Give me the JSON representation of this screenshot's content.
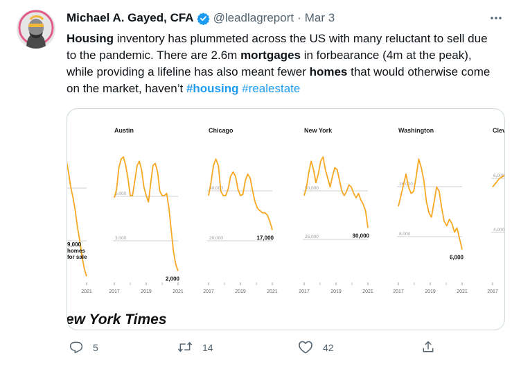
{
  "tweet": {
    "author_name": "Michael A. Gayed, CFA",
    "handle": "@leadlagreport",
    "separator": "·",
    "date": "Mar 3",
    "text_parts": [
      {
        "t": "Housing",
        "s": "bold"
      },
      {
        "t": " inventory has plummeted across the US with many reluctant to sell due to the pandemic. There are 2.6m ",
        "s": "plain"
      },
      {
        "t": "mortgages",
        "s": "bold"
      },
      {
        "t": " in forbearance (4m at the peak), while providing a lifeline has also meant fewer ",
        "s": "plain"
      },
      {
        "t": "homes",
        "s": "bold"
      },
      {
        "t": " that would otherwise come on the market, haven’t ",
        "s": "plain"
      },
      {
        "t": "#housing",
        "s": "hashtag-bold"
      },
      {
        "t": " ",
        "s": "plain"
      },
      {
        "t": "#realestate",
        "s": "hashtag"
      }
    ]
  },
  "media": {
    "source_text": "ew York Times",
    "panels": [
      {
        "city": "",
        "x_tick": "2021",
        "gridlines": [],
        "end_label": [
          "9,000",
          "homes",
          "for sale"
        ],
        "values": [
          20,
          38,
          36,
          24,
          10,
          0,
          -12,
          -28,
          -40,
          -55,
          -66,
          -73
        ]
      },
      {
        "city": "Austin",
        "x_ticks": [
          "2017",
          "2019",
          "2021"
        ],
        "gridlines": [
          "6,000",
          "3,000"
        ],
        "end_label": [
          "2,000"
        ],
        "values": [
          0,
          8,
          28,
          36,
          38,
          30,
          18,
          2,
          2,
          16,
          30,
          34,
          26,
          10,
          2,
          -4,
          14,
          30,
          32,
          24,
          6,
          2,
          2,
          4,
          -10,
          -30,
          -50,
          -62,
          -68
        ]
      },
      {
        "city": "Chicago",
        "x_ticks": [
          "2017",
          "2019",
          "2021"
        ],
        "gridlines": [
          "40,000",
          "20,000"
        ],
        "end_label": [
          "17,000"
        ],
        "values": [
          2,
          14,
          30,
          36,
          30,
          6,
          2,
          2,
          8,
          20,
          24,
          20,
          8,
          2,
          3,
          16,
          22,
          18,
          6,
          -4,
          -10,
          -12,
          -14,
          -14,
          -16,
          -22,
          -30
        ]
      },
      {
        "city": "New York",
        "x_ticks": [
          "2017",
          "2019",
          "2021"
        ],
        "gridlines": [
          "50,000",
          "25,000"
        ],
        "end_label": [
          "30,000"
        ],
        "values": [
          2,
          10,
          24,
          34,
          26,
          14,
          22,
          34,
          38,
          26,
          18,
          10,
          20,
          28,
          26,
          16,
          6,
          2,
          6,
          12,
          10,
          4,
          0,
          4,
          -2,
          -6,
          -12,
          -28
        ]
      },
      {
        "city": "Washington",
        "x_ticks": [
          "2017",
          "2019",
          "2021"
        ],
        "gridlines": [
          "16,000",
          "8,000"
        ],
        "end_label": [
          "6,000"
        ],
        "values": [
          -8,
          2,
          12,
          22,
          10,
          4,
          6,
          20,
          36,
          28,
          16,
          -4,
          -14,
          -18,
          -4,
          10,
          6,
          -10,
          -22,
          -26,
          -20,
          -24,
          -32,
          -28,
          -38,
          -48
        ]
      },
      {
        "city": "Clev",
        "x_tick": "2017",
        "gridlines": [
          "6,000",
          "4,000"
        ],
        "end_label": [],
        "values": [
          10,
          18,
          22,
          14
        ]
      }
    ]
  },
  "actions": {
    "reply_count": "5",
    "retweet_count": "14",
    "like_count": "42"
  },
  "colors": {
    "line": "#f7a823",
    "hashtag": "#1d9bf0",
    "verified": "#1d9bf0",
    "muted": "#536471"
  },
  "icons": {
    "verified": "verified-badge-icon",
    "more": "more-dots-icon",
    "reply": "reply-icon",
    "retweet": "retweet-icon",
    "like": "like-icon",
    "share": "share-icon"
  }
}
